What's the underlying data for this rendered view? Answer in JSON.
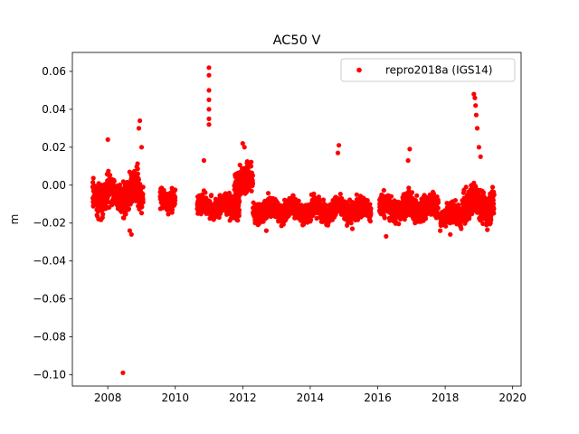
{
  "chart_data": {
    "type": "scatter",
    "title": "AC50 V",
    "xlabel": "",
    "ylabel": "m",
    "xlim": [
      2006.95,
      2020.25
    ],
    "ylim": [
      -0.106,
      0.07
    ],
    "xticks": [
      2008,
      2010,
      2012,
      2014,
      2016,
      2018,
      2020
    ],
    "xtick_labels": [
      "2008",
      "2010",
      "2012",
      "2014",
      "2016",
      "2018",
      "2020"
    ],
    "yticks": [
      -0.1,
      -0.08,
      -0.06,
      -0.04,
      -0.02,
      0.0,
      0.02,
      0.04,
      0.06
    ],
    "ytick_labels": [
      "−0.10",
      "−0.08",
      "−0.06",
      "−0.04",
      "−0.02",
      "0.00",
      "0.02",
      "0.04",
      "0.06"
    ],
    "grid": false,
    "legend_position": "top-right",
    "series": [
      {
        "name": "repro2018a (IGS14)",
        "color": "#ff0000",
        "marker": "circle",
        "segments": [
          {
            "x_start": 2007.55,
            "x_end": 2008.7,
            "center": -0.005,
            "spread": 0.009
          },
          {
            "x_start": 2008.7,
            "x_end": 2009.05,
            "center": -0.004,
            "spread": 0.012
          },
          {
            "x_start": 2009.55,
            "x_end": 2010.0,
            "center": -0.007,
            "spread": 0.006
          },
          {
            "x_start": 2010.65,
            "x_end": 2011.9,
            "center": -0.011,
            "spread": 0.006
          },
          {
            "x_start": 2011.75,
            "x_end": 2012.3,
            "center": 0.002,
            "spread": 0.008
          },
          {
            "x_start": 2012.3,
            "x_end": 2015.8,
            "center": -0.013,
            "spread": 0.006
          },
          {
            "x_start": 2016.05,
            "x_end": 2017.8,
            "center": -0.012,
            "spread": 0.007
          },
          {
            "x_start": 2017.85,
            "x_end": 2018.5,
            "center": -0.016,
            "spread": 0.006
          },
          {
            "x_start": 2018.5,
            "x_end": 2019.45,
            "center": -0.01,
            "spread": 0.009
          }
        ],
        "peaks": [
          {
            "x": 2008.0,
            "y": 0.024
          },
          {
            "x": 2008.95,
            "y": 0.034
          },
          {
            "x": 2008.92,
            "y": 0.03
          },
          {
            "x": 2009.0,
            "y": 0.02
          },
          {
            "x": 2010.85,
            "y": 0.013
          },
          {
            "x": 2011.0,
            "y": 0.062
          },
          {
            "x": 2011.0,
            "y": 0.058
          },
          {
            "x": 2011.0,
            "y": 0.05
          },
          {
            "x": 2011.0,
            "y": 0.045
          },
          {
            "x": 2011.0,
            "y": 0.04
          },
          {
            "x": 2011.0,
            "y": 0.035
          },
          {
            "x": 2011.0,
            "y": 0.032
          },
          {
            "x": 2012.0,
            "y": 0.022
          },
          {
            "x": 2012.05,
            "y": 0.02
          },
          {
            "x": 2014.85,
            "y": 0.021
          },
          {
            "x": 2014.82,
            "y": 0.017
          },
          {
            "x": 2016.95,
            "y": 0.019
          },
          {
            "x": 2016.9,
            "y": 0.013
          },
          {
            "x": 2018.85,
            "y": 0.048
          },
          {
            "x": 2018.88,
            "y": 0.046
          },
          {
            "x": 2018.9,
            "y": 0.042
          },
          {
            "x": 2018.92,
            "y": 0.037
          },
          {
            "x": 2018.95,
            "y": 0.03
          },
          {
            "x": 2019.0,
            "y": 0.02
          },
          {
            "x": 2019.05,
            "y": 0.015
          },
          {
            "x": 2008.45,
            "y": -0.099
          },
          {
            "x": 2008.7,
            "y": -0.026
          },
          {
            "x": 2008.65,
            "y": -0.024
          },
          {
            "x": 2016.25,
            "y": -0.027
          },
          {
            "x": 2018.15,
            "y": -0.026
          },
          {
            "x": 2012.7,
            "y": -0.024
          },
          {
            "x": 2015.25,
            "y": -0.023
          }
        ]
      }
    ]
  }
}
